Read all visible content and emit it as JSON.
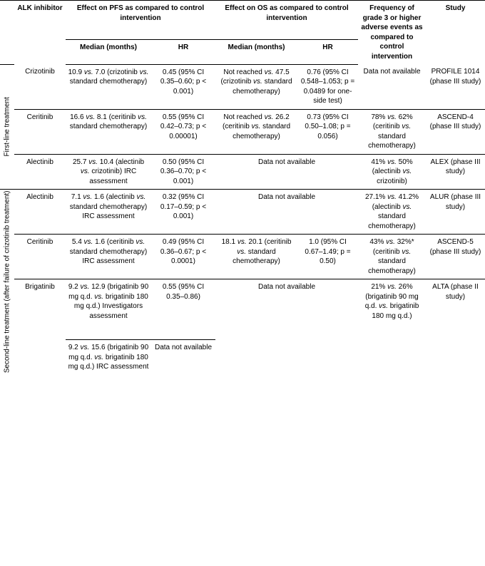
{
  "headers": {
    "alk": "ALK inhibitor",
    "pfs": "Effect on PFS as compared to control intervention",
    "os": "Effect on OS as compared to control intervention",
    "freq": "Frequency of grade 3 or higher adverse events as compared to control intervention",
    "study": "Study",
    "median": "Median (months)",
    "hr": "HR"
  },
  "sections": {
    "first": "First-line treatment",
    "second": "Second-line treatment (after failure of crizotinib treatment)"
  },
  "rows": {
    "crizotinib": {
      "name": "Crizotinib",
      "pfs_med": "10.9 vs. 7.0 (crizotinib vs. standard chemotherapy)",
      "pfs_hr": "0.45 (95% CI 0.35–0.60; p < 0.001)",
      "os_med": "Not reached vs. 47.5 (crizotinib vs. standard chemotherapy)",
      "os_hr": "0.76 (95% CI 0.548–1.053; p = 0.0489 for one-side test)",
      "freq": "Data not available",
      "study": "PROFILE 1014 (phase III study)"
    },
    "ceritinib1": {
      "name": "Ceritinib",
      "pfs_med": "16.6 vs. 8.1 (ceritinib vs. standard chemotherapy)",
      "pfs_hr": "0.55 (95% CI 0.42–0.73; p < 0.00001)",
      "os_med": "Not reached vs. 26.2 (ceritinib vs. standard chemotherapy)",
      "os_hr": "0.73 (95% CI 0.50–1.08; p = 0.056)",
      "freq": "78% vs. 62% (ceritinib vs. standard chemotherapy)",
      "study": "ASCEND-4 (phase III study)"
    },
    "alectinib1": {
      "name": "Alectinib",
      "pfs_med": "25.7 vs. 10.4 (alectinib vs. crizotinib) IRC assessment",
      "pfs_hr": "0.50 (95% CI 0.36–0.70; p < 0.001)",
      "os": "Data not available",
      "freq": "41% vs. 50% (alectinib vs. crizotinib)",
      "study": "ALEX (phase III study)"
    },
    "alectinib2": {
      "name": "Alectinib",
      "pfs_med": "7.1 vs. 1.6 (alectinib vs. standard chemotherapy) IRC assessment",
      "pfs_hr": "0.32 (95% CI 0.17–0.59; p < 0.001)",
      "os": "Data not available",
      "freq": "27.1% vs. 41.2% (alectinib vs. standard chemotherapy)",
      "study": "ALUR (phase III study)"
    },
    "ceritinib2": {
      "name": "Ceritinib",
      "pfs_med": "5.4 vs. 1.6 (ceritinib vs. standard chemotherapy) IRC assessment",
      "pfs_hr": "0.49 (95% CI 0.36–0.67; p < 0.0001)",
      "os_med": "18.1 vs. 20.1 (ceritinib vs. standard chemotherapy)",
      "os_hr": "1.0 (95% CI 0.67–1.49; p = 0.50)",
      "freq": "43% vs. 32%* (ceritinib vs. standard chemotherapy)",
      "study": "ASCEND-5 (phase III study)"
    },
    "brigatinib_a": {
      "name": "Brigatinib",
      "pfs_med": "9.2 vs. 12.9 (brigatinib 90 mg q.d. vs. brigatinib 180 mg q.d.) Investigators assessment",
      "pfs_hr": "0.55 (95% CI 0.35–0.86)",
      "os": "Data not available",
      "freq": "21% vs. 26% (brigatinib 90 mg q.d. vs. brigatinib 180 mg q.d.)",
      "study": "ALTA (phase II study)"
    },
    "brigatinib_b": {
      "pfs_med": "9.2 vs. 15.6 (brigatinib 90 mg q.d. vs. brigatinib 180 mg q.d.) IRC assessment",
      "pfs_hr": "Data not available"
    }
  }
}
